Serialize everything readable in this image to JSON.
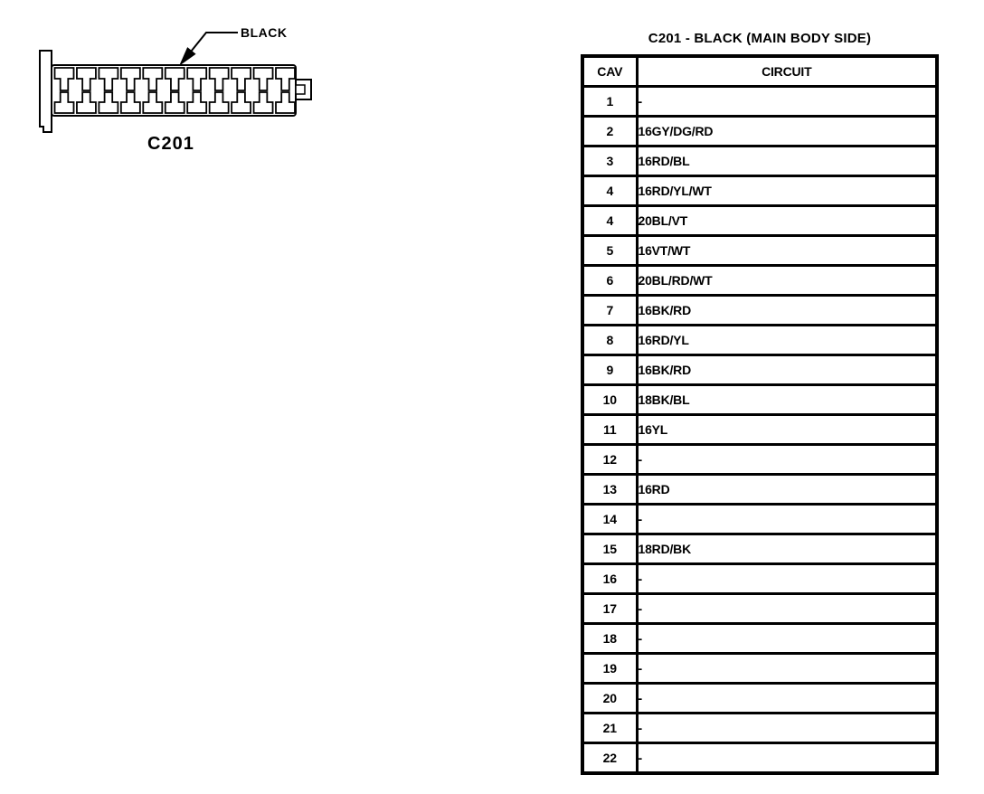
{
  "connector": {
    "id_label": "C201",
    "color_label": "BLACK",
    "terminal_rows": 2,
    "terminal_columns": 11,
    "ink_color": "#000000",
    "fill_color": "#ffffff"
  },
  "table": {
    "title": "C201 - BLACK (MAIN BODY SIDE)",
    "headers": [
      "CAV",
      "CIRCUIT"
    ],
    "rows": [
      {
        "cav": "1",
        "circuit": "-"
      },
      {
        "cav": "2",
        "circuit": "16GY/DG/RD"
      },
      {
        "cav": "3",
        "circuit": "16RD/BL"
      },
      {
        "cav": "4",
        "circuit": "16RD/YL/WT"
      },
      {
        "cav": "4",
        "circuit": "20BL/VT"
      },
      {
        "cav": "5",
        "circuit": "16VT/WT"
      },
      {
        "cav": "6",
        "circuit": "20BL/RD/WT"
      },
      {
        "cav": "7",
        "circuit": "16BK/RD"
      },
      {
        "cav": "8",
        "circuit": "16RD/YL"
      },
      {
        "cav": "9",
        "circuit": "16BK/RD"
      },
      {
        "cav": "10",
        "circuit": "18BK/BL"
      },
      {
        "cav": "11",
        "circuit": "16YL"
      },
      {
        "cav": "12",
        "circuit": "-"
      },
      {
        "cav": "13",
        "circuit": "16RD"
      },
      {
        "cav": "14",
        "circuit": "-"
      },
      {
        "cav": "15",
        "circuit": "18RD/BK"
      },
      {
        "cav": "16",
        "circuit": "-"
      },
      {
        "cav": "17",
        "circuit": "-"
      },
      {
        "cav": "18",
        "circuit": "-"
      },
      {
        "cav": "19",
        "circuit": "-"
      },
      {
        "cav": "20",
        "circuit": "-"
      },
      {
        "cav": "21",
        "circuit": "-"
      },
      {
        "cav": "22",
        "circuit": "-"
      }
    ]
  }
}
